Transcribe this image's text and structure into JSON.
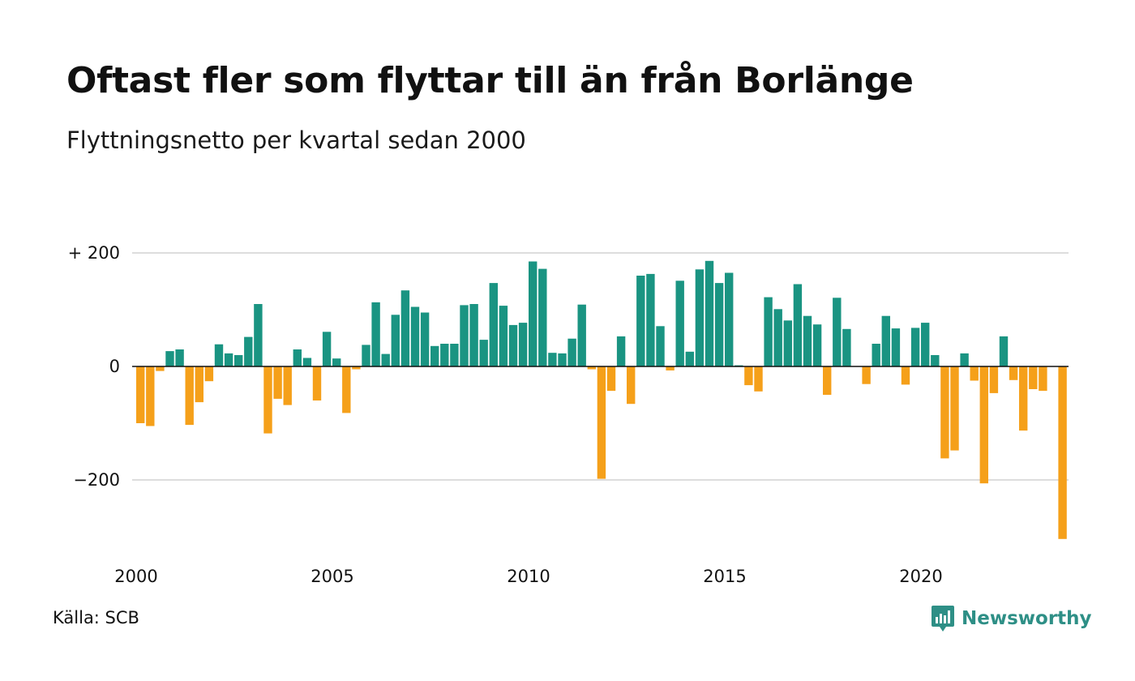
{
  "header": {
    "title": "Oftast fler som flyttar till än från Borlänge",
    "subtitle": "Flyttningsnetto per kvartal sedan 2000"
  },
  "footer": {
    "source": "Källa: SCB",
    "brand": "Newsworthy"
  },
  "colors": {
    "positive": "#1a9482",
    "negative": "#f5a01a",
    "gridline": "#dddddd",
    "zeroline": "#111111",
    "brand": "#2e8f86"
  },
  "chart_data": {
    "type": "bar",
    "title": "Oftast fler som flyttar till än från Borlänge",
    "subtitle": "Flyttningsnetto per kvartal sedan 2000",
    "xlabel": "",
    "ylabel": "",
    "grid": true,
    "ylim": [
      -310,
      300
    ],
    "y_ticks": [
      {
        "value": 200,
        "label": "+ 200"
      },
      {
        "value": 0,
        "label": "0"
      },
      {
        "value": -200,
        "label": "−200"
      }
    ],
    "x_ticks": [
      "2000",
      "2005",
      "2010",
      "2015",
      "2020"
    ],
    "start": "2000 Q1",
    "values": [
      -100,
      -105,
      -8,
      27,
      30,
      -103,
      -63,
      -26,
      39,
      23,
      20,
      52,
      110,
      -118,
      -57,
      -68,
      30,
      15,
      -60,
      61,
      14,
      -82,
      -5,
      38,
      113,
      22,
      91,
      134,
      105,
      95,
      36,
      40,
      40,
      108,
      110,
      47,
      147,
      107,
      73,
      77,
      185,
      172,
      24,
      23,
      49,
      109,
      -5,
      -198,
      -43,
      53,
      -66,
      160,
      163,
      71,
      -7,
      151,
      26,
      171,
      186,
      147,
      165,
      2,
      -33,
      -44,
      122,
      101,
      81,
      145,
      89,
      74,
      -50,
      121,
      66,
      0,
      -31,
      40,
      89,
      67,
      -32,
      68,
      77,
      20,
      -162,
      -148,
      23,
      -25,
      -206,
      -47,
      53,
      -24,
      -113,
      -40,
      -43,
      0,
      -304
    ]
  }
}
